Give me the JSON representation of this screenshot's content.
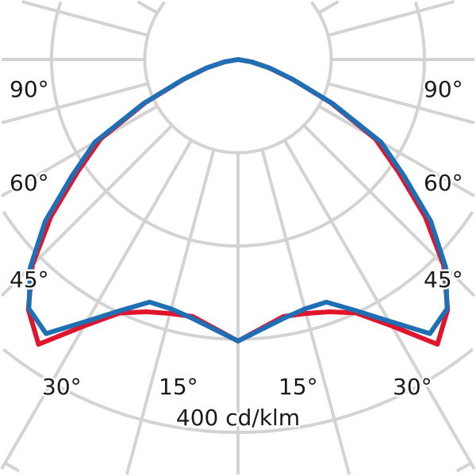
{
  "chart_data": {
    "type": "polar",
    "unit_label": "400 cd/klm",
    "orientation": "0° pointing down (nadir), 90° horizontal, symmetric left/right",
    "radial_rings": [
      100,
      200,
      300,
      400,
      500
    ],
    "spoke_step_deg": 15,
    "angle_labels": {
      "left": [
        "90°",
        "60°",
        "45°",
        "30°",
        "15°"
      ],
      "right": [
        "15°",
        "30°",
        "45°",
        "60°",
        "90°"
      ]
    },
    "angles_deg": [
      0,
      10,
      15,
      20,
      25,
      30,
      35,
      40,
      45,
      50,
      55,
      60,
      65,
      70,
      75,
      80,
      90
    ],
    "series": [
      {
        "color": "#e0142b",
        "values": [
          302,
          280,
          282,
          288,
          300,
          330,
          373,
          350,
          312,
          262,
          210,
          170,
          110,
          62,
          34,
          15,
          0
        ]
      },
      {
        "color": "#1f6fb5",
        "values": [
          302,
          282,
          277,
          277,
          297,
          324,
          359,
          349,
          315,
          270,
          217,
          177,
          112,
          63,
          35,
          15,
          0
        ]
      }
    ],
    "grid": true,
    "grid_color": "#d3d3d3",
    "legend": "none"
  }
}
